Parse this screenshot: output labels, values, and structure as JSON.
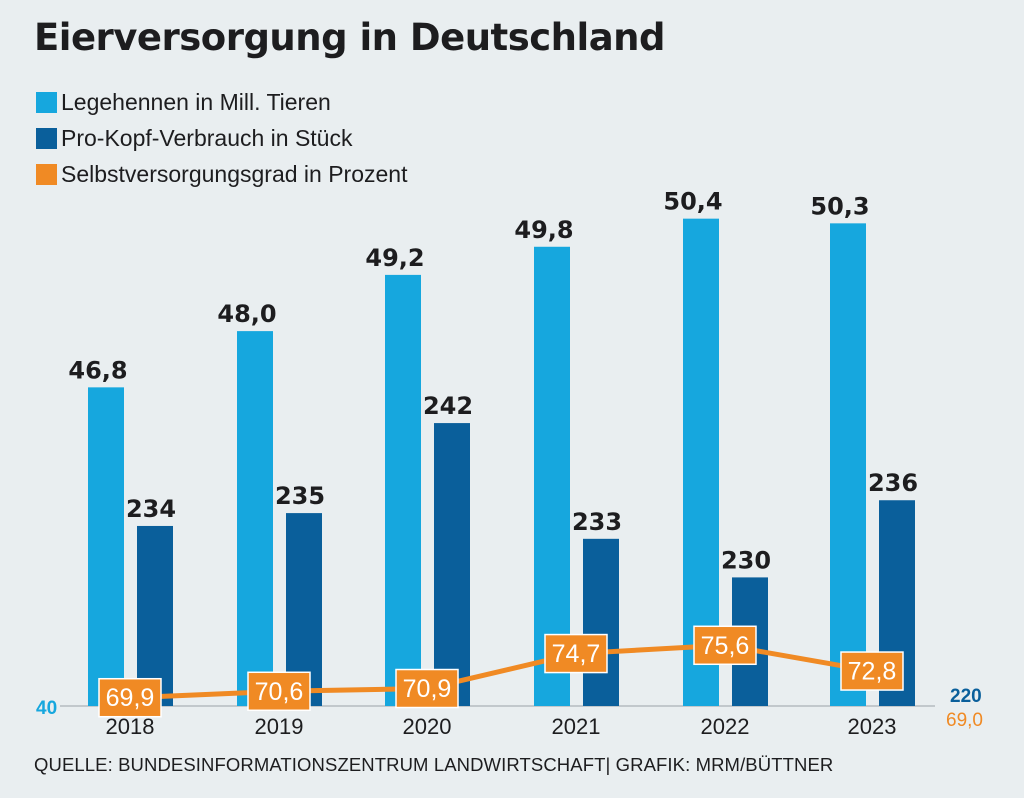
{
  "chart_data": {
    "type": "bar",
    "title": "Eierversorgung in Deutschland",
    "categories": [
      "2018",
      "2019",
      "2020",
      "2021",
      "2022",
      "2023"
    ],
    "series": [
      {
        "name": "Legehennen in Mill. Tieren",
        "type": "bar",
        "color": "#16a7de",
        "values": [
          46.8,
          48.0,
          49.2,
          49.8,
          50.4,
          50.3
        ],
        "labels": [
          "46,8",
          "48,0",
          "49,2",
          "49,8",
          "50,4",
          "50,3"
        ],
        "axis_min_label": "40"
      },
      {
        "name": "Pro-Kopf-Verbrauch in Stück",
        "type": "bar",
        "color": "#0a5f9b",
        "values": [
          234,
          235,
          242,
          233,
          230,
          236
        ],
        "labels": [
          "234",
          "235",
          "242",
          "233",
          "230",
          "236"
        ],
        "axis_min_label": "220"
      },
      {
        "name": "Selbstversorgungsgrad in Prozent",
        "type": "line",
        "color": "#f08a24",
        "values": [
          69.9,
          70.6,
          70.9,
          74.7,
          75.6,
          72.8
        ],
        "labels": [
          "69,9",
          "70,6",
          "70,9",
          "74,7",
          "75,6",
          "72,8"
        ],
        "axis_min_label": "69,0"
      }
    ],
    "source": "QUELLE: BUNDESINFORMATIONSZENTRUM LANDWIRTSCHAFT| GRAFIK: MRM/BÜTTNER"
  }
}
